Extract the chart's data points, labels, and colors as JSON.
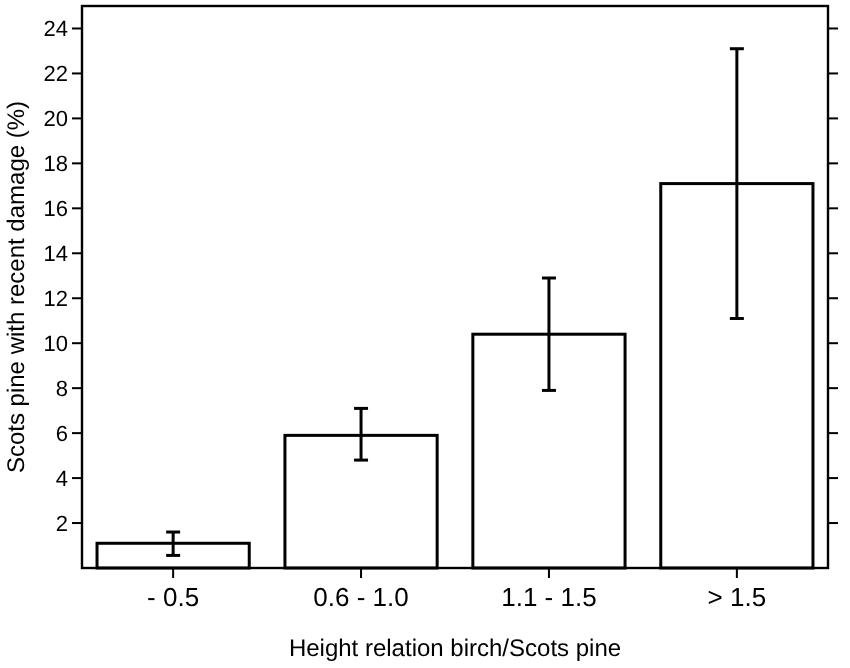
{
  "chart_data": {
    "type": "bar",
    "xlabel": "Height relation birch/Scots pine",
    "ylabel": "Scots pine with recent damage (%)",
    "categories": [
      "- 0.5",
      "0.6 - 1.0",
      "1.1 - 1.5",
      "> 1.5"
    ],
    "values": [
      1.1,
      5.9,
      10.4,
      17.1
    ],
    "errors": [
      [
        0.56,
        1.6
      ],
      [
        4.8,
        7.1
      ],
      [
        7.9,
        12.9
      ],
      [
        11.1,
        23.1
      ]
    ],
    "color": "#ffffff",
    "ylim": [
      0,
      25
    ],
    "yticks": [
      2,
      4,
      6,
      8,
      10,
      12,
      14,
      16,
      18,
      20,
      22,
      24
    ],
    "grid": false
  }
}
